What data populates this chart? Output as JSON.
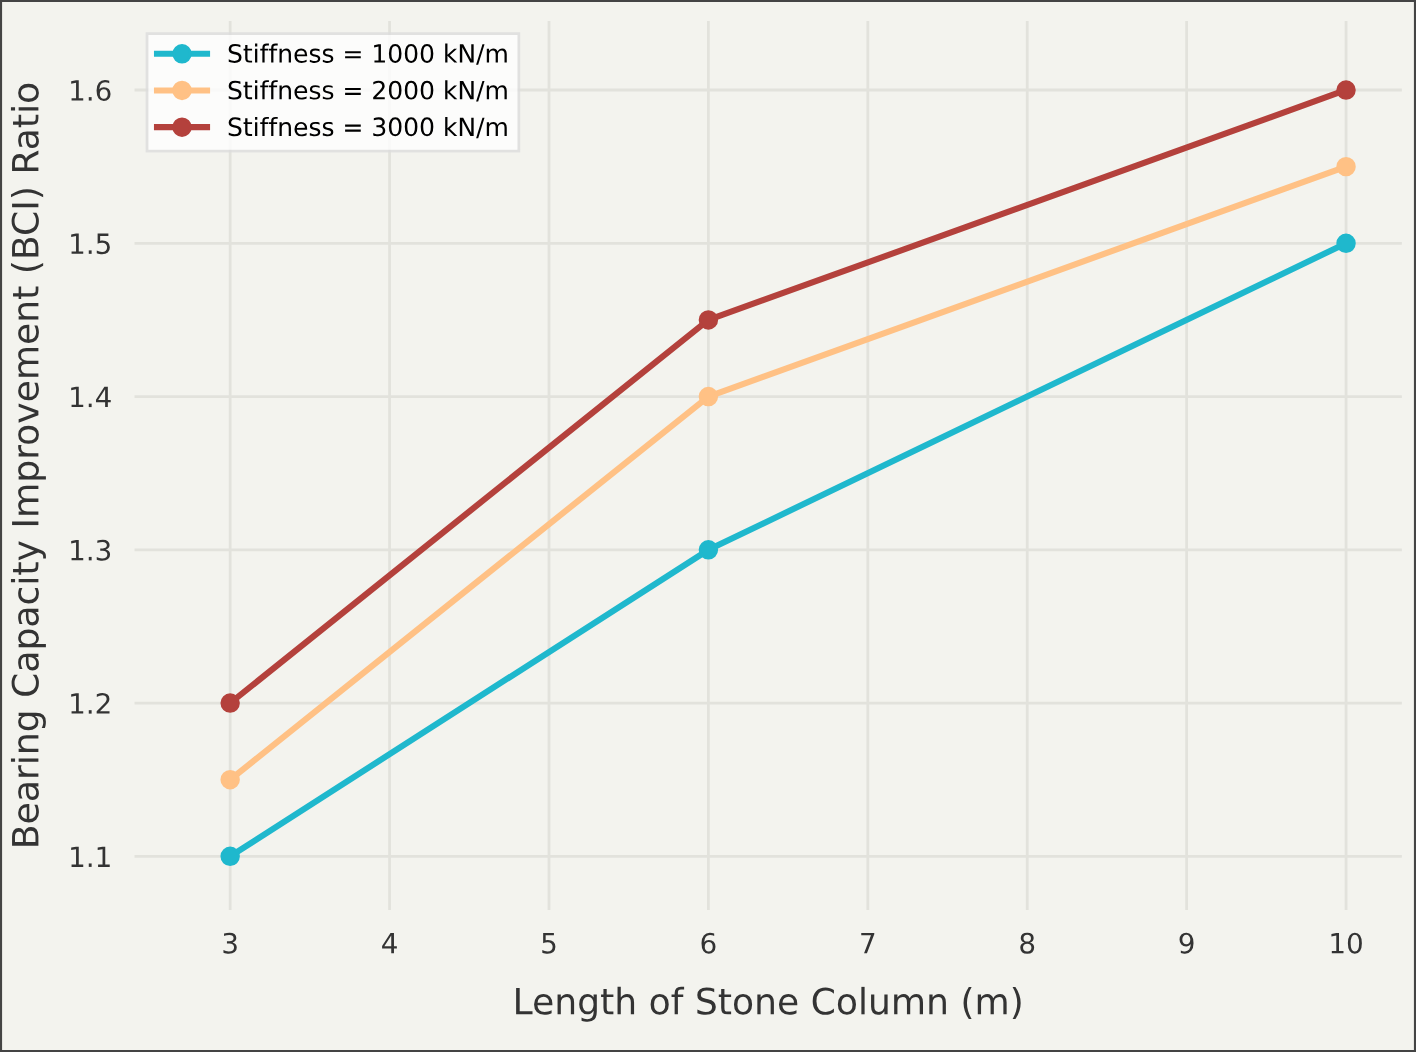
{
  "chart_data": {
    "type": "line",
    "xlabel": "Length of Stone Column (m)",
    "ylabel": "Bearing Capacity Improvement (BCI) Ratio",
    "x": [
      3,
      6,
      10
    ],
    "series": [
      {
        "name": "Stiffness = 1000 kN/m",
        "color": "#1fb8cd",
        "values": [
          1.1,
          1.3,
          1.5
        ]
      },
      {
        "name": "Stiffness = 2000 kN/m",
        "color": "#ffc185",
        "values": [
          1.15,
          1.4,
          1.55
        ]
      },
      {
        "name": "Stiffness = 3000 kN/m",
        "color": "#b4413c",
        "values": [
          1.2,
          1.45,
          1.6
        ]
      }
    ],
    "xlim": [
      2.4,
      10.35
    ],
    "ylim": [
      1.065,
      1.645
    ],
    "xticks": [
      3,
      4,
      5,
      6,
      7,
      8,
      9,
      10
    ],
    "yticks": [
      1.1,
      1.2,
      1.3,
      1.4,
      1.5,
      1.6
    ],
    "grid": true,
    "legend": "top left",
    "marker": "circle",
    "line_style": "solid"
  }
}
